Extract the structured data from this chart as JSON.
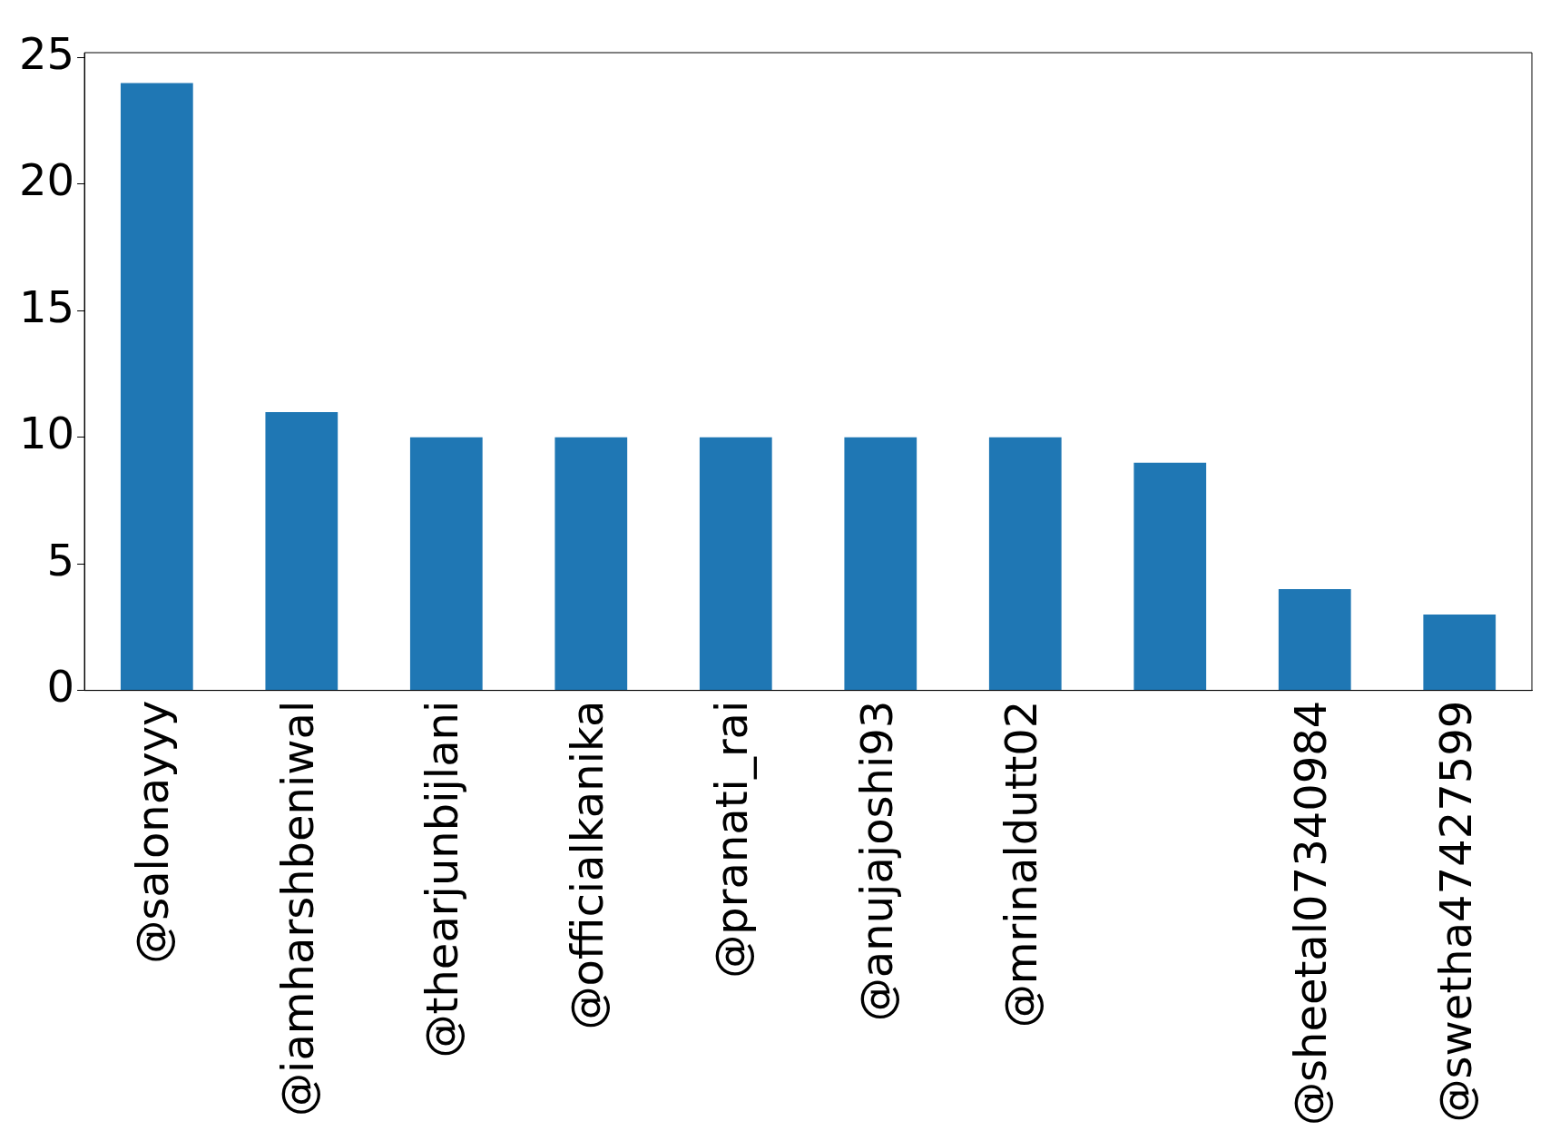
{
  "chart_data": {
    "type": "bar",
    "categories": [
      "@salonayyy",
      "@iamharshbeniwal",
      "@thearjunbijlani",
      "@officialkanika",
      "@pranati_rai",
      "@anujajoshi93",
      "@mrinaldutt02",
      null,
      "@sheetal07340984",
      "@swetha47427599"
    ],
    "values": [
      24,
      11,
      10,
      10,
      10,
      10,
      10,
      9,
      4,
      3
    ],
    "color": "#1f77b4",
    "ylim": [
      0,
      25.2
    ],
    "yticks": [
      0,
      5,
      10,
      15,
      20,
      25
    ],
    "grid": false,
    "legend": false
  }
}
